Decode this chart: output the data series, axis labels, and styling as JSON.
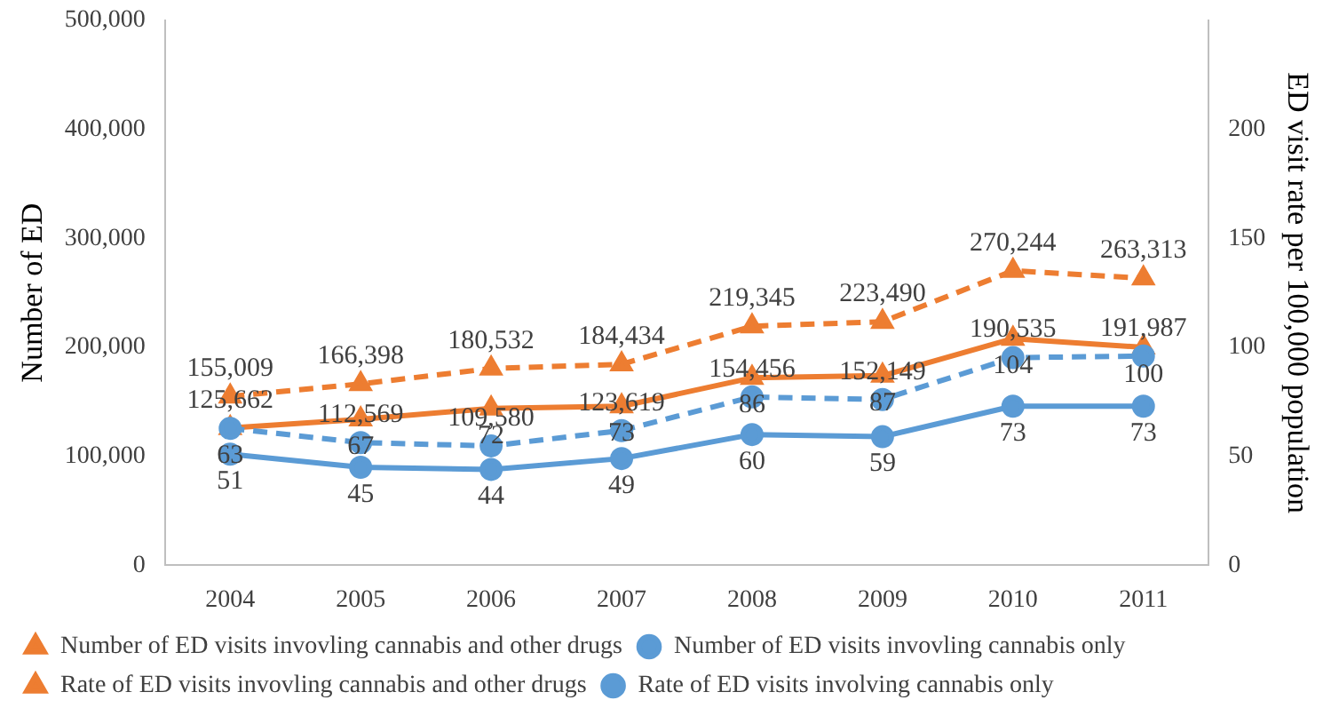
{
  "chart_data": {
    "type": "line",
    "categories": [
      "2004",
      "2005",
      "2006",
      "2007",
      "2008",
      "2009",
      "2010",
      "2011"
    ],
    "ylabel": "Number of ED",
    "y2label": "ED visit rate per 100,000 population",
    "ylim": [
      0,
      500000
    ],
    "yticks": [
      {
        "value": 0,
        "label": "0"
      },
      {
        "value": 100000,
        "label": "100,000"
      },
      {
        "value": 200000,
        "label": "200,000"
      },
      {
        "value": 300000,
        "label": "300,000"
      },
      {
        "value": 400000,
        "label": "400,000"
      },
      {
        "value": 500000,
        "label": "500,000"
      }
    ],
    "y2lim": [
      0,
      250
    ],
    "y2ticks": [
      0,
      50,
      100,
      150,
      200
    ],
    "grid": false,
    "legend": "bottom",
    "series": [
      {
        "name": "Number of ED visits invovling cannabis and other drugs",
        "color": "#ed7d31",
        "marker": "triangle",
        "line_style": "dashed",
        "axis": "y",
        "values": [
          155009,
          166398,
          180532,
          184434,
          219345,
          223490,
          270244,
          263313
        ],
        "value_labels": [
          "155,009",
          "166,398",
          "180,532",
          "184,434",
          "219,345",
          "223,490",
          "270,244",
          "263,313"
        ]
      },
      {
        "name": "Number of ED visits invovling cannabis only",
        "color": "#5b9bd5",
        "marker": "circle",
        "line_style": "dashed",
        "axis": "y",
        "values": [
          125662,
          112569,
          109580,
          123619,
          154456,
          152149,
          190535,
          191987
        ],
        "value_labels": [
          "125,662",
          "112,569",
          "109,580",
          "123,619",
          "154,456",
          "152,149",
          "190,535",
          "191,987"
        ]
      },
      {
        "name": "Rate of ED visits invovling cannabis and other drugs",
        "color": "#ed7d31",
        "marker": "triangle",
        "line_style": "solid",
        "axis": "y2",
        "values": [
          63,
          67,
          72,
          73,
          86,
          87,
          104,
          100
        ],
        "value_labels": [
          "63",
          "67",
          "72",
          "73",
          "86",
          "87",
          "104",
          "100"
        ]
      },
      {
        "name": "Rate of ED visits involving cannabis only",
        "color": "#5b9bd5",
        "marker": "circle",
        "line_style": "solid",
        "axis": "y2",
        "values": [
          51,
          45,
          44,
          49,
          60,
          59,
          73,
          73
        ],
        "value_labels": [
          "51",
          "45",
          "44",
          "49",
          "60",
          "59",
          "73",
          "73"
        ]
      }
    ]
  }
}
